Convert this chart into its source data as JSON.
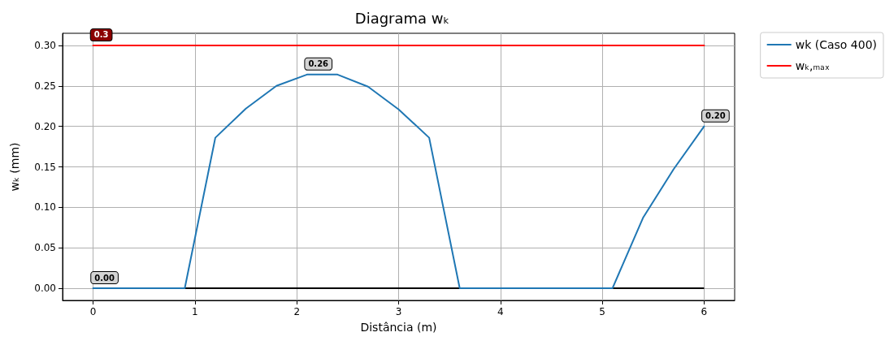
{
  "chart_data": {
    "type": "line",
    "title": "Diagrama wₖ",
    "xlabel": "Distância (m)",
    "ylabel": "wₖ (mm)",
    "x": [
      0,
      0.3,
      0.6,
      0.9,
      1.2,
      1.5,
      1.8,
      2.1,
      2.4,
      2.7,
      3.0,
      3.3,
      3.6,
      3.9,
      4.2,
      4.5,
      4.8,
      5.1,
      5.4,
      5.7,
      6.0
    ],
    "series": [
      {
        "name": "wk (Caso 400)",
        "color": "#1f77b4",
        "values": [
          0,
          0,
          0,
          0,
          0.186,
          0.222,
          0.25,
          0.264,
          0.264,
          0.249,
          0.221,
          0.186,
          0,
          0,
          0,
          0,
          0,
          0,
          0.087,
          0.147,
          0.2
        ],
        "value_labels": [
          "0.00",
          null,
          null,
          null,
          null,
          null,
          null,
          "0.26",
          null,
          null,
          null,
          null,
          null,
          null,
          null,
          null,
          null,
          null,
          null,
          null,
          "0.20"
        ]
      },
      {
        "name": "wₖ,ₘₐₓ",
        "color": "#ff0000",
        "x": [
          0,
          6
        ],
        "values": [
          0.3,
          0.3
        ],
        "value_labels": [
          "0.3",
          null
        ]
      }
    ],
    "ref_lines": [
      {
        "axis": "y",
        "value": 0,
        "color": "#000000"
      }
    ],
    "xlim": [
      -0.3,
      6.3
    ],
    "xticks": [
      0,
      1,
      2,
      3,
      4,
      5,
      6
    ],
    "ylim": [
      -0.015,
      0.315
    ],
    "yticks": [
      {
        "value": 0,
        "label": "0.00"
      },
      {
        "value": 0.05,
        "label": "0.05"
      },
      {
        "value": 0.1,
        "label": "0.10"
      },
      {
        "value": 0.15,
        "label": "0.15"
      },
      {
        "value": 0.2,
        "label": "0.20"
      },
      {
        "value": 0.25,
        "label": "0.25"
      },
      {
        "value": 0.3,
        "label": "0.30"
      }
    ],
    "grid": true,
    "legend": "top right",
    "marker": "none",
    "line_style": "solid"
  }
}
